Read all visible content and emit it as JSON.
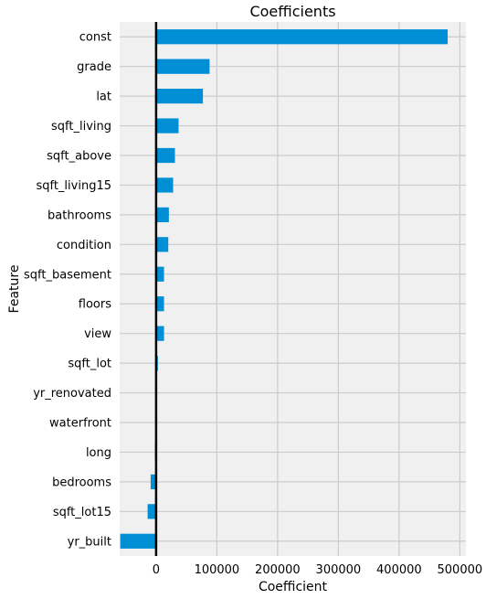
{
  "chart_data": {
    "type": "bar",
    "orientation": "horizontal",
    "title": "Coefficients",
    "xlabel": "Coefficient",
    "ylabel": "Feature",
    "xlim": [
      -60000,
      510000
    ],
    "xticks": [
      0,
      100000,
      200000,
      300000,
      400000,
      500000
    ],
    "xtick_labels": [
      "0",
      "100000",
      "200000",
      "300000",
      "400000",
      "500000"
    ],
    "grid": true,
    "categories": [
      "const",
      "grade",
      "lat",
      "sqft_living",
      "sqft_above",
      "sqft_living15",
      "bathrooms",
      "condition",
      "sqft_basement",
      "floors",
      "view",
      "sqft_lot",
      "yr_renovated",
      "waterfront",
      "long",
      "bedrooms",
      "sqft_lot15",
      "yr_built"
    ],
    "values": [
      480000,
      88000,
      77000,
      37000,
      31000,
      28000,
      21000,
      20000,
      13000,
      13000,
      13000,
      3000,
      0,
      0,
      -2000,
      -9000,
      -14000,
      -59000
    ],
    "colors": {
      "bar": "#008fd5",
      "background": "#f0f0f0",
      "grid": "#cbcbcb",
      "zero_line": "#000000"
    }
  }
}
